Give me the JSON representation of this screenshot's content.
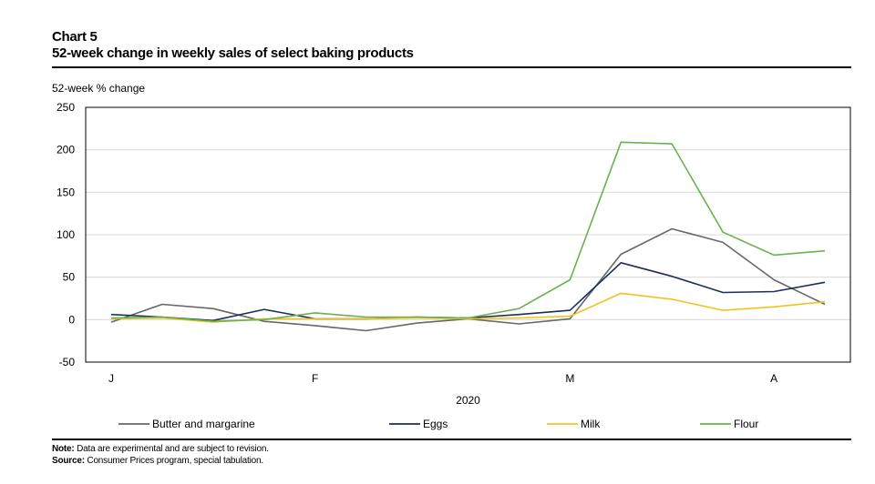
{
  "header": {
    "chart_label": "Chart 5",
    "title": "52-week change in weekly sales of select baking products"
  },
  "footer": {
    "note_label": "Note:",
    "note_text": " Data are experimental and are subject to revision.",
    "source_label": "Source:",
    "source_text": " Consumer Prices program, special tabulation."
  },
  "chart_data": {
    "type": "line",
    "title": "52-week change in weekly sales of select baking products",
    "xlabel": "2020",
    "ylabel": "52-week % change",
    "ylim": [
      -50,
      250
    ],
    "yticks": [
      -50,
      0,
      50,
      100,
      150,
      200,
      250
    ],
    "grid": true,
    "x": [
      0,
      1,
      2,
      3,
      4,
      5,
      6,
      7,
      8,
      9,
      10,
      11,
      12,
      13,
      14
    ],
    "xlim": [
      -0.5,
      14.5
    ],
    "x_tick_labels": [
      {
        "label": "J",
        "x": 0
      },
      {
        "label": "F",
        "x": 4
      },
      {
        "label": "M",
        "x": 9
      },
      {
        "label": "A",
        "x": 13
      }
    ],
    "legend_position": "bottom",
    "series": [
      {
        "name": "Butter and margarine",
        "color": "#676767",
        "values": [
          -3,
          18,
          13,
          -2,
          -7,
          -13,
          -4,
          1,
          -5,
          1,
          77,
          107,
          91,
          47,
          18
        ]
      },
      {
        "name": "Eggs",
        "color": "#1b2d5b",
        "values": [
          6,
          3,
          -1,
          12,
          1,
          1,
          3,
          2,
          6,
          11,
          67,
          51,
          32,
          33,
          44
        ]
      },
      {
        "name": "Milk",
        "color": "#f4c21b",
        "values": [
          1,
          2,
          -3,
          1,
          1,
          1,
          2,
          1,
          2,
          4,
          31,
          24,
          11,
          15,
          21
        ]
      },
      {
        "name": "Flour",
        "color": "#6ab24e",
        "values": [
          2,
          3,
          -2,
          0,
          8,
          3,
          3,
          2,
          13,
          47,
          209,
          207,
          103,
          76,
          81
        ]
      }
    ]
  }
}
